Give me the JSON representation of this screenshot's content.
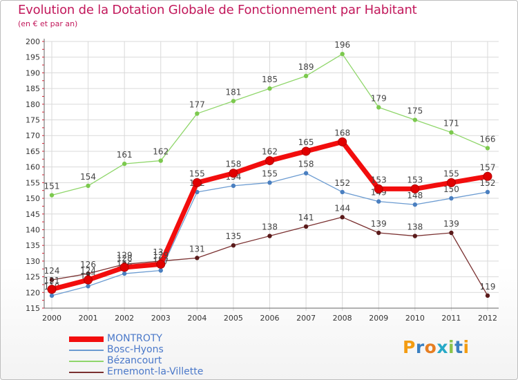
{
  "title": "Evolution de la Dotation Globale de Fonctionnement par Habitant",
  "subtitle": "(en € et par an)",
  "logo_text": "Proxiti",
  "colors": {
    "title": "#c2185b",
    "axis_text": "#333333",
    "legend_text": "#4a78c9",
    "grid": "#d9d9d9"
  },
  "chart_data": {
    "type": "line",
    "x": [
      "2000",
      "2001",
      "2002",
      "2003",
      "2004",
      "2005",
      "2006",
      "2007",
      "2008",
      "2009",
      "2010",
      "2011",
      "2012"
    ],
    "ylim": [
      115,
      200
    ],
    "yticks": [
      115,
      120,
      125,
      130,
      135,
      140,
      145,
      150,
      155,
      160,
      165,
      170,
      175,
      180,
      185,
      190,
      195,
      200
    ],
    "grid": true,
    "legend_position": "bottom-left",
    "series": [
      {
        "name": "Bézancourt",
        "color": "#8fd66a",
        "marker": "#7cc94e",
        "width": 1.3,
        "values": [
          151,
          154,
          161,
          162,
          177,
          181,
          185,
          189,
          196,
          179,
          175,
          171,
          166
        ]
      },
      {
        "name": "Ernemont-la-Villette",
        "color": "#7a3030",
        "marker": "#5a1a1a",
        "width": 1.3,
        "values": [
          124,
          126,
          129,
          130,
          131,
          135,
          138,
          141,
          144,
          139,
          138,
          139,
          119
        ]
      },
      {
        "name": "Bosc-Hyons",
        "color": "#6b9bd1",
        "marker": "#4a7fc0",
        "width": 1.3,
        "values": [
          119,
          122,
          126,
          127,
          152,
          154,
          155,
          158,
          152,
          149,
          148,
          150,
          152
        ]
      },
      {
        "name": "MONTROTY",
        "color": "#f20d0d",
        "marker": "#e00000",
        "width": 7,
        "values": [
          121,
          124,
          128,
          129,
          155,
          158,
          162,
          165,
          168,
          153,
          153,
          155,
          157
        ]
      }
    ],
    "legend_order": [
      "MONTROTY",
      "Bosc-Hyons",
      "Bézancourt",
      "Ernemont-la-Villette"
    ]
  }
}
